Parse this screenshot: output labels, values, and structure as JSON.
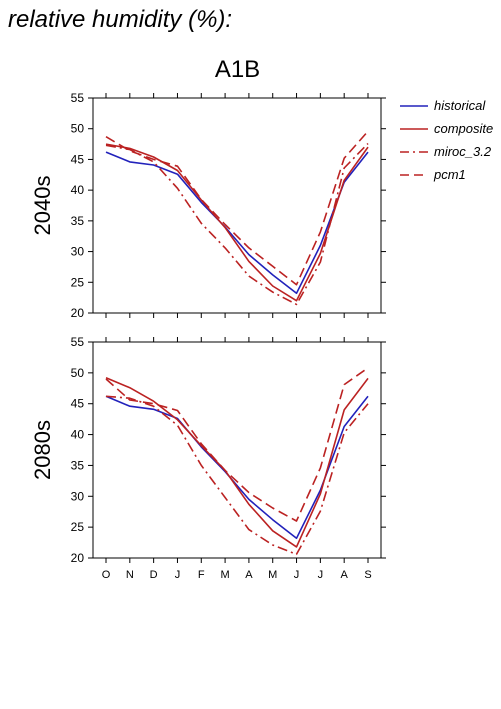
{
  "figure": {
    "title": "relative humidity (%):",
    "scenario": "A1B"
  },
  "colors": {
    "historical": "#2222bb",
    "model": "#bb2222"
  },
  "chart_data": [
    {
      "type": "line",
      "row_label": "2040s",
      "categories": [
        "O",
        "N",
        "D",
        "J",
        "F",
        "M",
        "A",
        "M",
        "J",
        "J",
        "A",
        "S"
      ],
      "ylim": [
        20,
        55
      ],
      "yticks": [
        20,
        25,
        30,
        35,
        40,
        45,
        50,
        55
      ],
      "legend_position": "right",
      "series": [
        {
          "name": "historical",
          "style": "solid",
          "values": [
            46.2,
            44.6,
            44.1,
            42.6,
            38.0,
            34.0,
            29.5,
            26.2,
            23.2,
            31.0,
            41.3,
            46.2
          ]
        },
        {
          "name": "composite",
          "style": "solid",
          "values": [
            47.5,
            46.8,
            45.4,
            43.2,
            38.4,
            33.9,
            28.4,
            24.4,
            22.0,
            29.7,
            41.6,
            47.0
          ]
        },
        {
          "name": "miroc_3.2",
          "style": "dashdot",
          "values": [
            47.3,
            46.6,
            44.6,
            40.3,
            34.6,
            30.6,
            26.0,
            23.4,
            21.4,
            28.3,
            43.6,
            47.6
          ]
        },
        {
          "name": "pcm1",
          "style": "dashed",
          "values": [
            48.7,
            46.4,
            45.0,
            43.9,
            38.5,
            34.4,
            30.6,
            27.6,
            24.6,
            33.2,
            45.2,
            49.6
          ]
        }
      ]
    },
    {
      "type": "line",
      "row_label": "2080s",
      "categories": [
        "O",
        "N",
        "D",
        "J",
        "F",
        "M",
        "A",
        "M",
        "J",
        "J",
        "A",
        "S"
      ],
      "ylim": [
        20,
        55
      ],
      "yticks": [
        20,
        25,
        30,
        35,
        40,
        45,
        50,
        55
      ],
      "series": [
        {
          "name": "historical",
          "style": "solid",
          "values": [
            46.2,
            44.6,
            44.1,
            42.6,
            38.0,
            34.0,
            29.5,
            26.2,
            23.2,
            31.0,
            41.3,
            46.2
          ]
        },
        {
          "name": "composite",
          "style": "solid",
          "values": [
            49.2,
            47.6,
            45.4,
            42.4,
            38.2,
            34.2,
            28.7,
            24.4,
            21.8,
            30.4,
            44.0,
            49.1
          ]
        },
        {
          "name": "miroc_3.2",
          "style": "dashdot",
          "values": [
            46.2,
            45.9,
            44.6,
            41.5,
            35.0,
            29.8,
            24.6,
            22.1,
            20.6,
            27.6,
            40.3,
            45.0
          ]
        },
        {
          "name": "pcm1",
          "style": "dashed",
          "values": [
            49.0,
            45.6,
            45.0,
            43.9,
            38.5,
            34.2,
            30.6,
            28.1,
            26.0,
            34.6,
            48.1,
            50.8
          ]
        }
      ]
    }
  ]
}
